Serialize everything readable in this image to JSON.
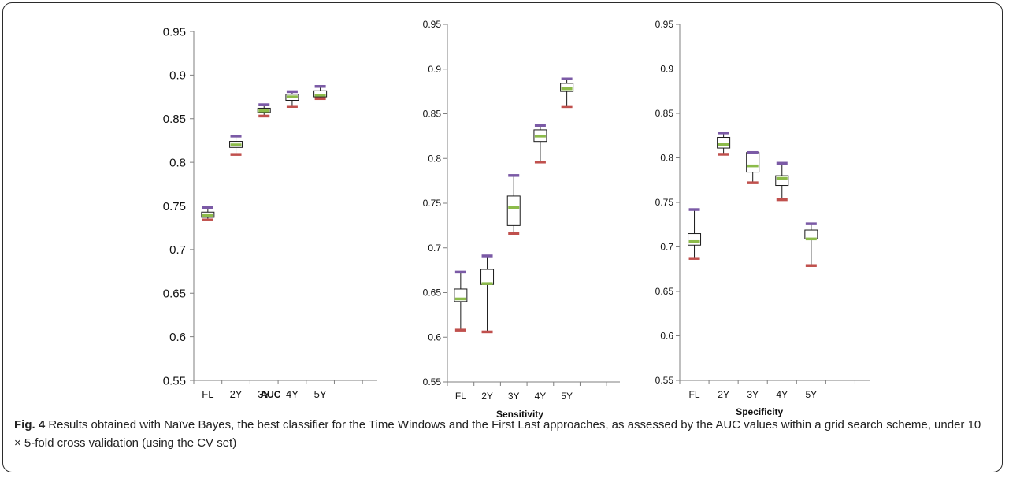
{
  "chart_data": [
    {
      "type": "box",
      "title": "",
      "xlabel": "AUC",
      "ylabel": "",
      "ylim": [
        0.55,
        0.95
      ],
      "yticks": [
        "0.55",
        "0.6",
        "0.65",
        "0.7",
        "0.75",
        "0.8",
        "0.85",
        "0.9",
        "0.95"
      ],
      "categories": [
        "FL",
        "2Y",
        "3Y",
        "4Y",
        "5Y"
      ],
      "boxes": [
        {
          "max": 0.748,
          "q3": 0.743,
          "median": 0.739,
          "q1": 0.737,
          "min": 0.734
        },
        {
          "max": 0.83,
          "q3": 0.824,
          "median": 0.82,
          "q1": 0.817,
          "min": 0.809
        },
        {
          "max": 0.866,
          "q3": 0.862,
          "median": 0.859,
          "q1": 0.857,
          "min": 0.853
        },
        {
          "max": 0.881,
          "q3": 0.878,
          "median": 0.875,
          "q1": 0.871,
          "min": 0.864
        },
        {
          "max": 0.887,
          "q3": 0.882,
          "median": 0.877,
          "q1": 0.875,
          "min": 0.873
        }
      ]
    },
    {
      "type": "box",
      "title": "",
      "xlabel": "Sensitivity",
      "ylabel": "",
      "ylim": [
        0.55,
        0.95
      ],
      "yticks": [
        "0.55",
        "0.6",
        "0.65",
        "0.7",
        "0.75",
        "0.8",
        "0.85",
        "0.9",
        "0.95"
      ],
      "categories": [
        "FL",
        "2Y",
        "3Y",
        "4Y",
        "5Y"
      ],
      "boxes": [
        {
          "max": 0.673,
          "q3": 0.654,
          "median": 0.643,
          "q1": 0.64,
          "min": 0.608
        },
        {
          "max": 0.691,
          "q3": 0.676,
          "median": 0.66,
          "q1": 0.659,
          "min": 0.606
        },
        {
          "max": 0.781,
          "q3": 0.758,
          "median": 0.745,
          "q1": 0.725,
          "min": 0.716
        },
        {
          "max": 0.837,
          "q3": 0.832,
          "median": 0.825,
          "q1": 0.819,
          "min": 0.796
        },
        {
          "max": 0.889,
          "q3": 0.884,
          "median": 0.878,
          "q1": 0.875,
          "min": 0.858
        }
      ]
    },
    {
      "type": "box",
      "title": "",
      "xlabel": "Specificity",
      "ylabel": "",
      "ylim": [
        0.55,
        0.95
      ],
      "yticks": [
        "0.55",
        "0.6",
        "0.65",
        "0.7",
        "0.75",
        "0.8",
        "0.85",
        "0.9",
        "0.95"
      ],
      "categories": [
        "FL",
        "2Y",
        "3Y",
        "4Y",
        "5Y"
      ],
      "boxes": [
        {
          "max": 0.742,
          "q3": 0.715,
          "median": 0.706,
          "q1": 0.702,
          "min": 0.687
        },
        {
          "max": 0.828,
          "q3": 0.823,
          "median": 0.815,
          "q1": 0.811,
          "min": 0.804
        },
        {
          "max": 0.806,
          "q3": 0.806,
          "median": 0.791,
          "q1": 0.784,
          "min": 0.772
        },
        {
          "max": 0.794,
          "q3": 0.78,
          "median": 0.777,
          "q1": 0.769,
          "min": 0.753
        },
        {
          "max": 0.726,
          "q3": 0.719,
          "median": 0.709,
          "q1": 0.709,
          "min": 0.679
        }
      ]
    }
  ],
  "colors": {
    "max_marker": "#7b5aa6",
    "median_marker": "#8cbb4a",
    "min_marker": "#c0504d",
    "box_stroke": "#1a1a1a",
    "axis": "#7f7f7f"
  },
  "caption": {
    "fig_label": "Fig. 4",
    "text": " Results obtained with Naïve Bayes, the best classifier for the Time Windows and the First Last approaches, as assessed by the AUC values within a grid search scheme, under 10 × 5-fold cross validation (using the CV set)"
  }
}
